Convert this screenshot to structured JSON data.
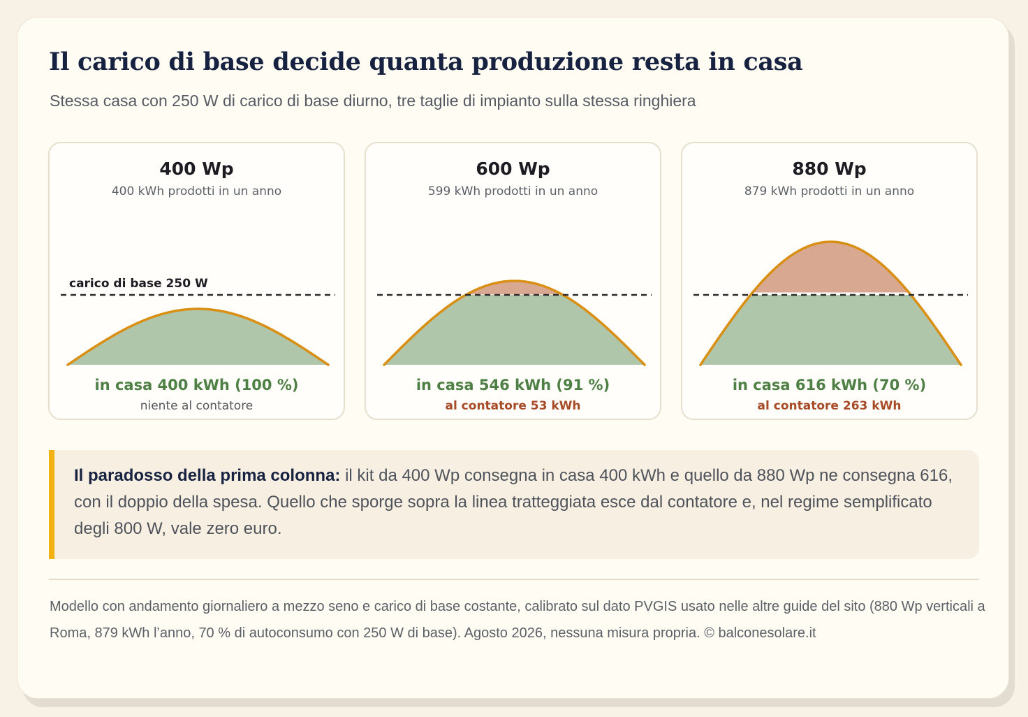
{
  "header": {
    "title": "Il carico di base decide quanta produzione resta in casa",
    "subtitle": "Stessa casa con 250 W di carico di base diurno, tre taglie di impianto sulla stessa ringhiera"
  },
  "panels": [
    {
      "title": "400 Wp",
      "production": "400 kWh prodotti in un anno",
      "baseline_label": "carico di base 250 W",
      "in_casa": "in casa 400 kWh (100 %)",
      "meter": "niente al contatore",
      "meter_style": "neutral"
    },
    {
      "title": "600 Wp",
      "production": "599 kWh prodotti in un anno",
      "baseline_label": "",
      "in_casa": "in casa 546 kWh (91 %)",
      "meter": "al contatore 53 kWh",
      "meter_style": "export"
    },
    {
      "title": "880 Wp",
      "production": "879 kWh prodotti in un anno",
      "baseline_label": "",
      "in_casa": "in casa 616 kWh (70 %)",
      "meter": "al contatore 263 kWh",
      "meter_style": "export"
    }
  ],
  "chart_data": [
    {
      "type": "area",
      "title": "400 Wp",
      "x": [
        0,
        0.25,
        0.5,
        0.75,
        1
      ],
      "y": [
        0,
        0.71,
        1,
        0.71,
        0
      ],
      "peak_w": 200,
      "baseline_w": 250,
      "series": [
        {
          "name": "in casa",
          "kwh": 400
        },
        {
          "name": "al contatore",
          "kwh": 0
        }
      ]
    },
    {
      "type": "area",
      "title": "600 Wp",
      "x": [
        0,
        0.25,
        0.5,
        0.75,
        1
      ],
      "y": [
        0,
        0.71,
        1,
        0.71,
        0
      ],
      "peak_w": 300,
      "baseline_w": 250,
      "series": [
        {
          "name": "in casa",
          "kwh": 546
        },
        {
          "name": "al contatore",
          "kwh": 53
        }
      ]
    },
    {
      "type": "area",
      "title": "880 Wp",
      "x": [
        0,
        0.25,
        0.5,
        0.75,
        1
      ],
      "y": [
        0,
        0.71,
        1,
        0.71,
        0
      ],
      "peak_w": 440,
      "baseline_w": 250,
      "series": [
        {
          "name": "in casa",
          "kwh": 616
        },
        {
          "name": "al contatore",
          "kwh": 263
        }
      ]
    }
  ],
  "colors": {
    "self_consumed_fill": "#b0c6aa",
    "export_fill": "#d9a891",
    "curve": "#d98f14",
    "baseline": "#2a2a2a",
    "accent_bar": "#f2b312"
  },
  "note": {
    "lead": "Il paradosso della prima colonna:",
    "body": " il kit da 400 Wp consegna in casa 400 kWh e quello da 880 Wp ne consegna 616, con il doppio della spesa. Quello che sporge sopra la linea tratteggiata esce dal contatore e, nel regime semplificato degli 800 W, vale zero euro."
  },
  "footer": {
    "text": "Modello con andamento giornaliero a mezzo seno e carico di base costante, calibrato sul dato PVGIS usato nelle altre guide del sito (880 Wp verticali a Roma, 879 kWh l’anno, 70 % di autoconsumo con 250 W di base). Agosto 2026, nessuna misura propria. © balconesolare.it"
  }
}
